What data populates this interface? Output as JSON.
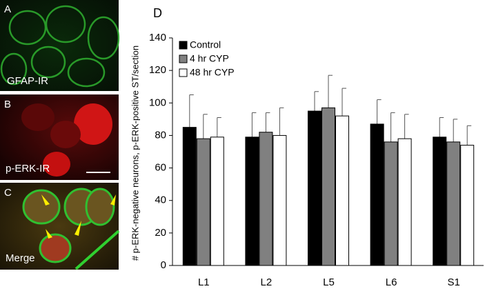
{
  "panels": [
    {
      "label": "A",
      "caption": "GFAP-IR"
    },
    {
      "label": "B",
      "caption": "p-ERK-IR"
    },
    {
      "label": "C",
      "caption": "Merge"
    }
  ],
  "chart_data": {
    "type": "bar",
    "panel_label": "D",
    "y_label": "# p-ERK-negative neurons, p-ERK-positive ST/section",
    "categories": [
      "L1",
      "L2",
      "L5",
      "L6",
      "S1"
    ],
    "series": [
      {
        "name": "Control",
        "color": "#000000",
        "values": [
          85,
          79,
          95,
          87,
          79
        ],
        "errors": [
          20,
          15,
          12,
          15,
          12
        ]
      },
      {
        "name": "4 hr CYP",
        "color": "#808080",
        "values": [
          78,
          82,
          97,
          76,
          76
        ],
        "errors": [
          15,
          12,
          20,
          18,
          14
        ]
      },
      {
        "name": "48 hr CYP",
        "color": "#ffffff",
        "values": [
          79,
          80,
          92,
          78,
          74
        ],
        "errors": [
          12,
          17,
          17,
          15,
          12
        ]
      }
    ],
    "ylim": [
      0,
      140
    ],
    "yticks": [
      0,
      20,
      40,
      60,
      80,
      100,
      120,
      140
    ],
    "legend": "top-left"
  }
}
